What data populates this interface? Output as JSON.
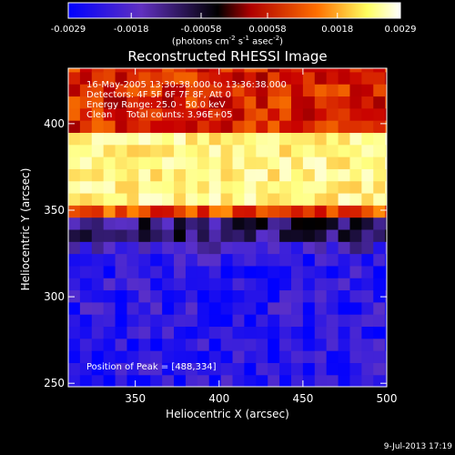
{
  "chart_data": {
    "type": "heatmap",
    "title": "Reconstructed RHESSI Image",
    "xlabel": "Heliocentric X (arcsec)",
    "ylabel": "Heliocentric Y (arcsec)",
    "xlim": [
      310,
      500
    ],
    "ylim": [
      248,
      432
    ],
    "x_ticks": [
      350,
      400,
      450,
      500
    ],
    "y_ticks": [
      250,
      300,
      350,
      400
    ],
    "colorbar": {
      "ticks": [
        "-0.0029",
        "-0.0018",
        "-0.00058",
        "0.00058",
        "0.0018",
        "0.0029"
      ],
      "range": [
        -0.0029,
        0.0029
      ],
      "label_main": "(photons cm",
      "label_exp1": "-2",
      "label_mid": " s",
      "label_exp2": "-1",
      "label_end": " asec",
      "label_exp3": "-2",
      "label_close": ")"
    },
    "annotations": {
      "time_range": "16-May-2005 13:30:38.000 to 13:36:38.000",
      "detectors": "Detectors: 4F 5F 6F 7F 8F, Att 0",
      "energy": "Energy Range: 25.0 - 50.0 keV",
      "clean": "Clean     Total counts: 3.96E+05",
      "peak": "Position of Peak = [488,334]"
    },
    "bands": [
      {
        "y_range": [
          398,
          432
        ],
        "level": 0.55
      },
      {
        "y_range": [
          355,
          398
        ],
        "level": 0.85
      },
      {
        "y_range": [
          343,
          355
        ],
        "level": 0.6
      },
      {
        "y_range": [
          334,
          343
        ],
        "level": 0.25
      },
      {
        "y_range": [
          325,
          334
        ],
        "level": 0.15
      },
      {
        "y_range": [
          248,
          325
        ],
        "level": 0.08
      }
    ],
    "peak": [
      488,
      334
    ],
    "colormap_stops": [
      "#0000ff",
      "#5a30c8",
      "#000000",
      "#c80000",
      "#ff8000",
      "#ffff80",
      "#ffffff"
    ]
  },
  "footer_date": "9-Jul-2013 17:19"
}
